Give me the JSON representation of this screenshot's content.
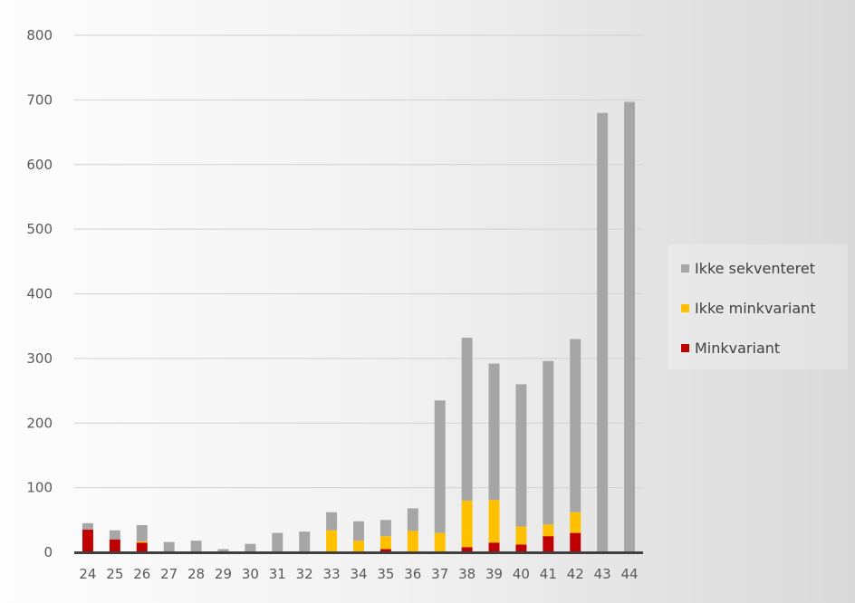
{
  "chart_data": {
    "type": "bar",
    "stacked": true,
    "categories": [
      "24",
      "25",
      "26",
      "27",
      "28",
      "29",
      "30",
      "31",
      "32",
      "33",
      "34",
      "35",
      "36",
      "37",
      "38",
      "39",
      "40",
      "41",
      "42",
      "43",
      "44"
    ],
    "series": [
      {
        "name": "Minkvariant",
        "color": "#c00000",
        "values": [
          35,
          20,
          15,
          0,
          0,
          0,
          0,
          0,
          0,
          0,
          0,
          5,
          0,
          0,
          8,
          15,
          12,
          25,
          30,
          0,
          0
        ]
      },
      {
        "name": "Ikke minkvariant",
        "color": "#ffc000",
        "values": [
          0,
          0,
          2,
          0,
          0,
          0,
          0,
          0,
          0,
          34,
          18,
          20,
          33,
          30,
          72,
          66,
          28,
          18,
          32,
          0,
          0
        ]
      },
      {
        "name": "Ikke sekventeret",
        "color": "#a6a6a6",
        "values": [
          10,
          14,
          25,
          16,
          18,
          5,
          13,
          30,
          32,
          28,
          30,
          25,
          35,
          205,
          252,
          211,
          220,
          253,
          268,
          680,
          697
        ]
      }
    ],
    "legend_order": [
      "Ikke sekventeret",
      "Ikke minkvariant",
      "Minkvariant"
    ],
    "ylim": [
      0,
      800
    ],
    "yticks": [
      0,
      100,
      200,
      300,
      400,
      500,
      600,
      700,
      800
    ],
    "grid": true,
    "legend_position": "right",
    "title": "",
    "xlabel": "",
    "ylabel": ""
  }
}
